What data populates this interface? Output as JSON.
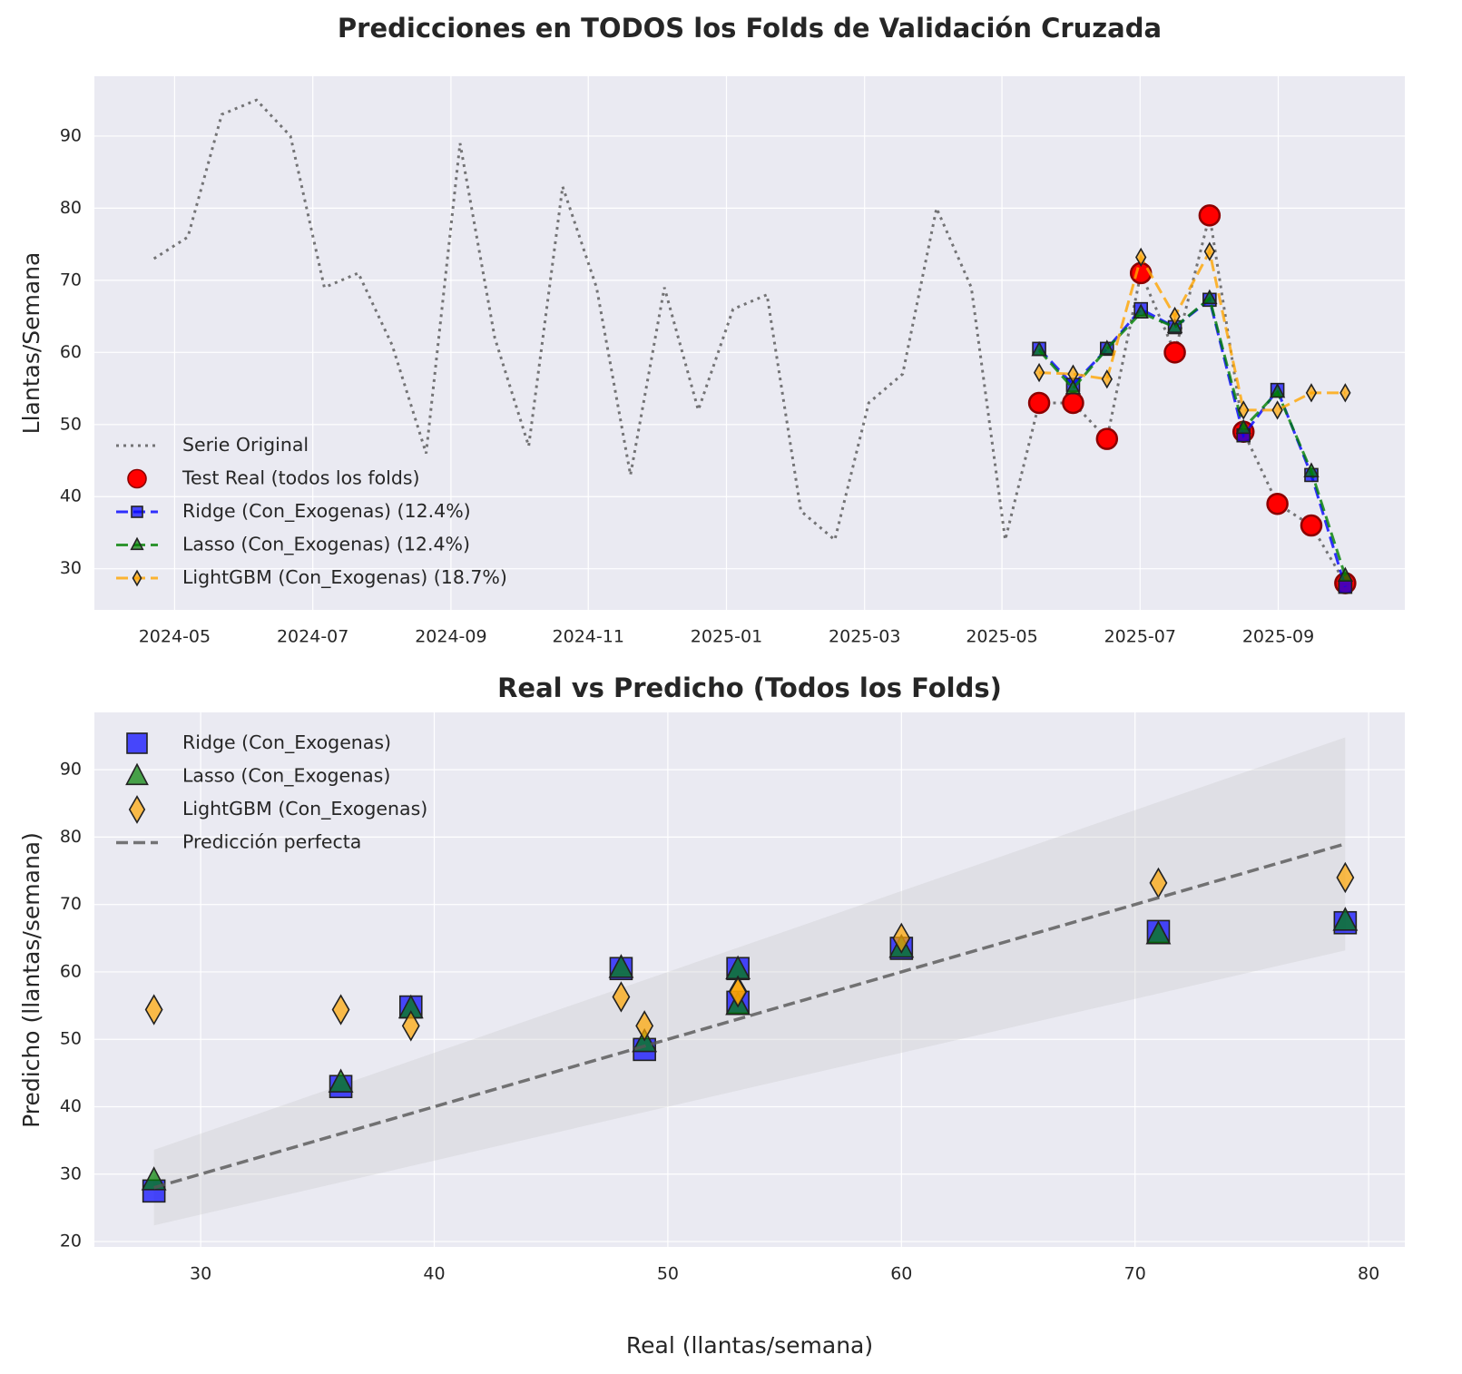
{
  "chart_data": [
    {
      "type": "line",
      "title": "Predicciones en TODOS los Folds de Validación Cruzada",
      "ylabel": "Llantas/Semana",
      "x": [
        2024.308,
        2024.349,
        2024.39,
        2024.432,
        2024.473,
        2024.514,
        2024.555,
        2024.596,
        2024.637,
        2024.678,
        2024.72,
        2024.761,
        2024.802,
        2024.843,
        2024.884,
        2024.925,
        2024.966,
        2025.008,
        2025.049,
        2025.09,
        2025.131,
        2025.172,
        2025.213,
        2025.254,
        2025.296,
        2025.337,
        2025.378,
        2025.419,
        2025.46,
        2025.501,
        2025.542,
        2025.584,
        2025.625,
        2025.666,
        2025.707,
        2025.748
      ],
      "series": [
        {
          "name": "Serie Original",
          "color": "#555555",
          "linestyle": "dotted",
          "marker": "none",
          "values": [
            73,
            76,
            93,
            95,
            90,
            69,
            71,
            61,
            46,
            89,
            62,
            47,
            83,
            69,
            43,
            69,
            52,
            66,
            68,
            38,
            34,
            53,
            57,
            80,
            69,
            34,
            53,
            53,
            48,
            71,
            60,
            79,
            49,
            39,
            36,
            28
          ]
        },
        {
          "name": "Test Real (todos los folds)",
          "color": "#ff0000",
          "linestyle": "none",
          "marker": "circle",
          "values": [
            null,
            null,
            null,
            null,
            null,
            null,
            null,
            null,
            null,
            null,
            null,
            null,
            null,
            null,
            null,
            null,
            null,
            null,
            null,
            null,
            null,
            null,
            null,
            null,
            null,
            null,
            53,
            53,
            48,
            71,
            60,
            79,
            49,
            39,
            36,
            28
          ]
        },
        {
          "name": "Ridge (Con_Exogenas) (12.4%)",
          "color": "#0000ff",
          "linestyle": "dashed",
          "marker": "square",
          "values": [
            null,
            null,
            null,
            null,
            null,
            null,
            null,
            null,
            null,
            null,
            null,
            null,
            null,
            null,
            null,
            null,
            null,
            null,
            null,
            null,
            null,
            null,
            null,
            null,
            null,
            null,
            60.5,
            55.5,
            60.5,
            66,
            63.5,
            67.3,
            48.5,
            54.8,
            43,
            27.5
          ]
        },
        {
          "name": "Lasso (Con_Exogenas) (12.4%)",
          "color": "#008000",
          "linestyle": "dashed",
          "marker": "triangle",
          "values": [
            null,
            null,
            null,
            null,
            null,
            null,
            null,
            null,
            null,
            null,
            null,
            null,
            null,
            null,
            null,
            null,
            null,
            null,
            null,
            null,
            null,
            null,
            null,
            null,
            null,
            null,
            60.3,
            55,
            60.5,
            65.5,
            63.5,
            67.5,
            49.5,
            54.5,
            43.5,
            29
          ]
        },
        {
          "name": "LightGBM (Con_Exogenas) (18.7%)",
          "color": "#ffa500",
          "linestyle": "dashed",
          "marker": "diamond",
          "values": [
            null,
            null,
            null,
            null,
            null,
            null,
            null,
            null,
            null,
            null,
            null,
            null,
            null,
            null,
            null,
            null,
            null,
            null,
            null,
            null,
            null,
            null,
            null,
            null,
            null,
            null,
            57.2,
            57,
            56.3,
            73.2,
            65,
            74,
            52,
            52,
            54.4,
            54.4
          ]
        }
      ],
      "xlim": [
        2024.236,
        2025.82
      ],
      "xticks": [
        {
          "value": 2024.333,
          "label": "2024-05"
        },
        {
          "value": 2024.5,
          "label": "2024-07"
        },
        {
          "value": 2024.667,
          "label": "2024-09"
        },
        {
          "value": 2024.833,
          "label": "2024-11"
        },
        {
          "value": 2025.0,
          "label": "2025-01"
        },
        {
          "value": 2025.167,
          "label": "2025-03"
        },
        {
          "value": 2025.333,
          "label": "2025-05"
        },
        {
          "value": 2025.5,
          "label": "2025-07"
        },
        {
          "value": 2025.667,
          "label": "2025-09"
        }
      ],
      "ylim": [
        24.3,
        98.3
      ],
      "yticks": [
        30,
        40,
        50,
        60,
        70,
        80,
        90
      ],
      "grid": true,
      "legend": "lower left"
    },
    {
      "type": "scatter",
      "title": "Real vs Predicho (Todos los Folds)",
      "xlabel": "Real (llantas/semana)",
      "ylabel": "Predicho (llantas/semana)",
      "x": [
        53,
        53,
        48,
        71,
        60,
        79,
        49,
        39,
        36,
        28
      ],
      "series": [
        {
          "name": "Ridge (Con_Exogenas)",
          "color": "#0000ff",
          "linestyle": "none",
          "marker": "square",
          "values": [
            60.5,
            55.5,
            60.5,
            66,
            63.5,
            67.3,
            48.5,
            54.8,
            43,
            27.5
          ]
        },
        {
          "name": "Lasso (Con_Exogenas)",
          "color": "#008000",
          "linestyle": "none",
          "marker": "triangle",
          "values": [
            60.3,
            55,
            60.5,
            65.5,
            63.5,
            67.5,
            49.5,
            54.5,
            43.5,
            29
          ]
        },
        {
          "name": "LightGBM (Con_Exogenas)",
          "color": "#ffa500",
          "linestyle": "none",
          "marker": "diamond",
          "values": [
            57.2,
            57,
            56.3,
            73.2,
            65,
            74,
            52,
            52,
            54.4,
            54.4
          ]
        },
        {
          "name": "Predicción perfecta",
          "color": "#555555",
          "linestyle": "dashed",
          "marker": "none",
          "x": [
            28,
            79
          ],
          "values": [
            28,
            79
          ]
        }
      ],
      "band": {
        "color": "#c8c8c8",
        "x": [
          28,
          79
        ],
        "lower": [
          22.4,
          63.2
        ],
        "upper": [
          33.6,
          94.8
        ]
      },
      "xlim": [
        25.45,
        81.55
      ],
      "xticks": [
        30,
        40,
        50,
        60,
        70,
        80
      ],
      "ylim": [
        19.2,
        98.5
      ],
      "yticks": [
        20,
        30,
        40,
        50,
        60,
        70,
        80,
        90
      ],
      "grid": true,
      "legend": "upper left"
    }
  ]
}
